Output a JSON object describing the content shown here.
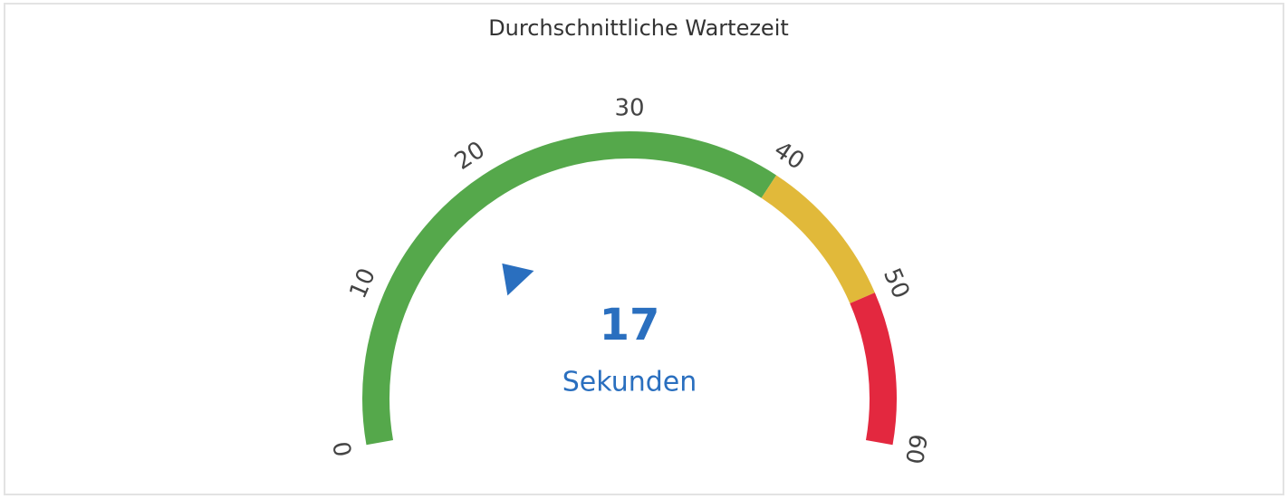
{
  "chart_data": {
    "type": "gauge",
    "title": "Durchschnittliche Wartezeit",
    "value": 17,
    "unit": "Sekunden",
    "min": 0,
    "max": 60,
    "ticks": [
      0,
      10,
      20,
      30,
      40,
      50,
      60
    ],
    "bands": [
      {
        "from": 0,
        "to": 40,
        "color": "#55a84b"
      },
      {
        "from": 40,
        "to": 50,
        "color": "#e1b93a"
      },
      {
        "from": 50,
        "to": 60,
        "color": "#e3283f"
      }
    ],
    "pointer_color": "#2a6fbf"
  }
}
